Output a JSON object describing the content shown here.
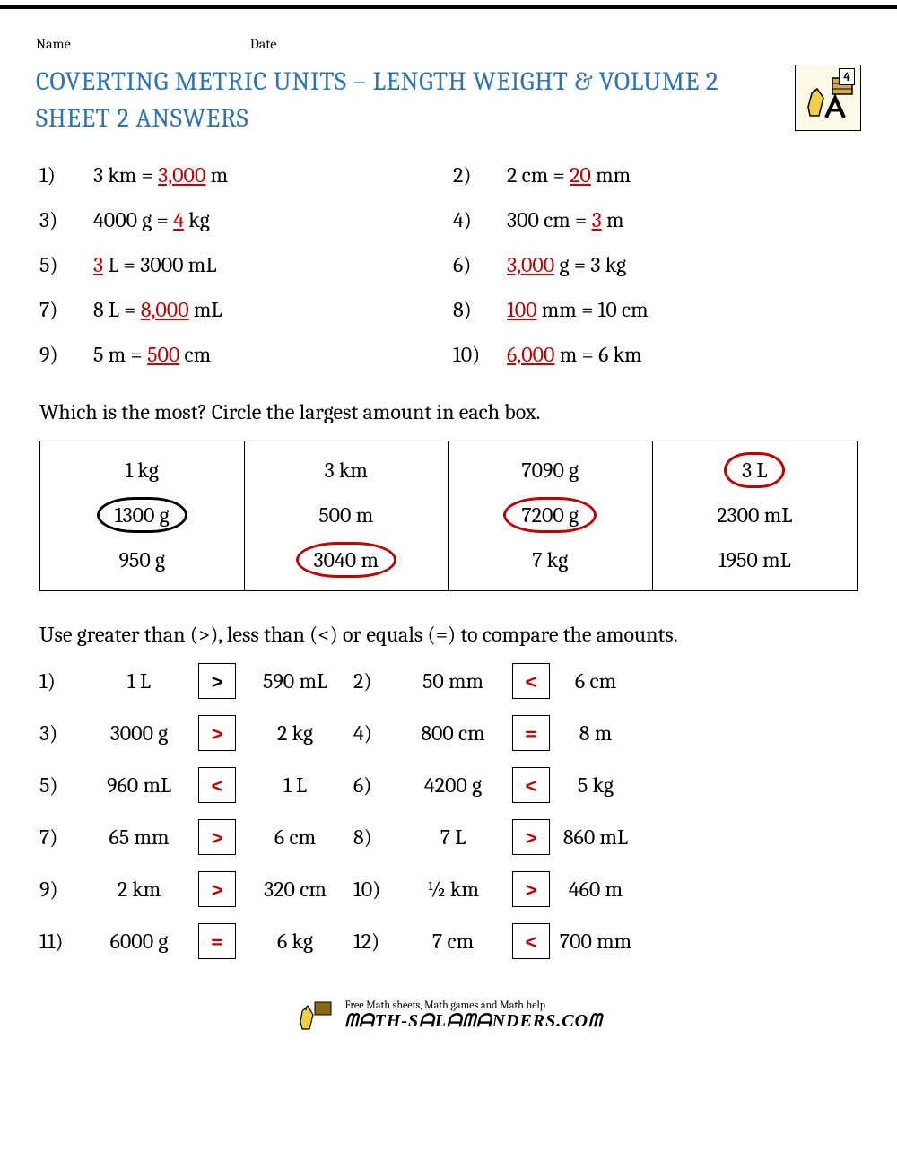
{
  "header": {
    "name_label": "Name",
    "date_label": "Date"
  },
  "title": {
    "line1": "COVERTING METRIC UNITS – LENGTH WEIGHT & VOLUME 2",
    "line2": "SHEET 2 ANSWERS",
    "badge_num": "4",
    "title_color": "#2e74b5"
  },
  "problems": [
    {
      "n": "1)",
      "pre": "3 km = ",
      "ans": "3,000",
      "post": " m"
    },
    {
      "n": "2)",
      "pre": "2 cm = ",
      "ans": "20",
      "post": " mm"
    },
    {
      "n": "3)",
      "pre": "4000 g = ",
      "ans": "4",
      "post": " kg"
    },
    {
      "n": "4)",
      "pre": "300 cm = ",
      "ans": "3",
      "post": " m"
    },
    {
      "n": "5)",
      "pre": "",
      "ans": "3",
      "post": " L = 3000 mL"
    },
    {
      "n": "6)",
      "pre": "",
      "ans": "3,000",
      "post": " g = 3 kg"
    },
    {
      "n": "7)",
      "pre": "8 L = ",
      "ans": "8,000",
      "post": " mL"
    },
    {
      "n": "8)",
      "pre": "",
      "ans": "100",
      "post": " mm = 10 cm"
    },
    {
      "n": "9)",
      "pre": "5 m = ",
      "ans": "500",
      "post": " cm"
    },
    {
      "n": "10)",
      "pre": "",
      "ans": "6,000",
      "post": " m = 6 km"
    }
  ],
  "section2_text": "Which is the most? Circle the largest amount in each box.",
  "boxes": [
    {
      "vals": [
        "1 kg",
        "1300 g",
        "950 g"
      ],
      "circled": 1,
      "color": "#000000"
    },
    {
      "vals": [
        "3 km",
        "500 m",
        "3040 m"
      ],
      "circled": 2,
      "color": "#c00000"
    },
    {
      "vals": [
        "7090 g",
        "7200 g",
        "7 kg"
      ],
      "circled": 1,
      "color": "#c00000"
    },
    {
      "vals": [
        "3 L",
        "2300 mL",
        "1950 mL"
      ],
      "circled": 0,
      "color": "#c00000"
    }
  ],
  "section3_text": "Use greater than (>), less than (<) or equals (=) to compare the amounts.",
  "compare": [
    {
      "n": "1)",
      "a": "1 L",
      "op": ">",
      "b": "590 mL",
      "red": false
    },
    {
      "n": "2)",
      "a": "50 mm",
      "op": "<",
      "b": "6 cm",
      "red": true
    },
    {
      "n": "3)",
      "a": "3000 g",
      "op": ">",
      "b": "2 kg",
      "red": true
    },
    {
      "n": "4)",
      "a": "800 cm",
      "op": "=",
      "b": "8 m",
      "red": true
    },
    {
      "n": "5)",
      "a": "960 mL",
      "op": "<",
      "b": "1 L",
      "red": true
    },
    {
      "n": "6)",
      "a": "4200 g",
      "op": "<",
      "b": "5 kg",
      "red": true
    },
    {
      "n": "7)",
      "a": "65 mm",
      "op": ">",
      "b": "6 cm",
      "red": true
    },
    {
      "n": "8)",
      "a": "7 L",
      "op": ">",
      "b": "860 mL",
      "red": true
    },
    {
      "n": "9)",
      "a": "2 km",
      "op": ">",
      "b": "320 cm",
      "red": true
    },
    {
      "n": "10)",
      "a": "½ km",
      "op": ">",
      "b": "460 m",
      "red": true
    },
    {
      "n": "11)",
      "a": "6000 g",
      "op": "=",
      "b": "6 kg",
      "red": true
    },
    {
      "n": "12)",
      "a": "7 cm",
      "op": "<",
      "b": "700 mm",
      "red": true
    }
  ],
  "footer": {
    "tagline": "Free Math sheets, Math games and Math help",
    "site": "ᗰᗩTH-SᗩLᗩᗰᗩNDERS.COᗰ"
  },
  "answer_color": "#c00000"
}
